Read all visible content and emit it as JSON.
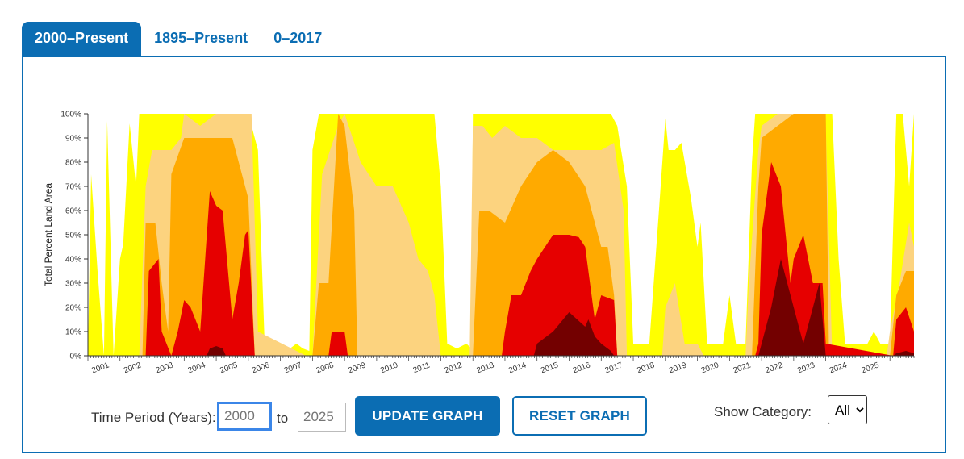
{
  "tabs": [
    {
      "label": "2000–Present"
    },
    {
      "label": "1895–Present"
    },
    {
      "label": "0–2017"
    }
  ],
  "controls": {
    "time_period_label": "Time Period (Years):",
    "start_placeholder": "2000",
    "to_label": "to",
    "end_placeholder": "2025",
    "update_label": "UPDATE GRAPH",
    "reset_label": "RESET GRAPH",
    "category_label": "Show Category:",
    "category_selected": "All"
  },
  "chart_data": {
    "type": "area",
    "stacked_cumulative": true,
    "ylabel": "Total Percent Land Area",
    "xlabel": "",
    "ylim": [
      0,
      100
    ],
    "xlim": [
      2000,
      2025.75
    ],
    "y_ticks": [
      "0%",
      "10%",
      "20%",
      "30%",
      "40%",
      "50%",
      "60%",
      "70%",
      "80%",
      "90%",
      "100%"
    ],
    "x_ticks": [
      "2001",
      "2002",
      "2003",
      "2004",
      "2005",
      "2006",
      "2007",
      "2008",
      "2009",
      "2010",
      "2011",
      "2012",
      "2013",
      "2014",
      "2015",
      "2016",
      "2017",
      "2018",
      "2019",
      "2020",
      "2021",
      "2022",
      "2023",
      "2024",
      "2025"
    ],
    "colors": {
      "D0": "#ffff00",
      "D1": "#fcd37f",
      "D2": "#ffaa00",
      "D3": "#e60000",
      "D4": "#730000"
    },
    "series": [
      {
        "key": "D0",
        "color": "#ffff00",
        "x": [
          2000,
          2000.1,
          2000.3,
          2000.5,
          2000.6,
          2000.8,
          2001.0,
          2001.1,
          2001.3,
          2001.5,
          2001.6,
          2001.8,
          2002.0,
          2002.2,
          2002.5,
          2002.8,
          2003.0,
          2003.5,
          2004.0,
          2004.5,
          2004.9,
          2005.0,
          2005.1,
          2005.3,
          2005.5,
          2005.8,
          2006.0,
          2006.3,
          2006.5,
          2006.7,
          2006.9,
          2007.0,
          2007.2,
          2007.5,
          2008.0,
          2008.5,
          2009.0,
          2009.5,
          2010.0,
          2010.5,
          2010.8,
          2011.0,
          2011.2,
          2011.5,
          2011.8,
          2011.95,
          2012.0,
          2012.5,
          2013.0,
          2013.5,
          2014.0,
          2014.5,
          2015.0,
          2015.5,
          2016.0,
          2016.3,
          2016.5,
          2016.8,
          2017.0,
          2017.1,
          2017.3,
          2017.5,
          2017.8,
          2018.0,
          2018.1,
          2018.3,
          2018.5,
          2018.8,
          2019.0,
          2019.1,
          2019.3,
          2019.5,
          2019.8,
          2020.0,
          2020.2,
          2020.5,
          2020.7,
          2020.8,
          2021.0,
          2021.5,
          2022.0,
          2022.5,
          2023.0,
          2023.2,
          2023.4,
          2023.6,
          2024.0,
          2024.3,
          2024.5,
          2024.7,
          2024.9,
          2025.0,
          2025.2,
          2025.4,
          2025.6,
          2025.75
        ],
        "y": [
          0,
          75,
          35,
          0,
          97,
          0,
          40,
          46,
          96,
          70,
          100,
          100,
          100,
          100,
          100,
          100,
          100,
          100,
          100,
          100,
          100,
          100,
          95,
          85,
          8,
          5,
          5,
          3,
          5,
          3,
          2,
          85,
          100,
          100,
          100,
          100,
          100,
          100,
          100,
          100,
          100,
          70,
          5,
          3,
          5,
          3,
          100,
          100,
          100,
          100,
          100,
          100,
          100,
          100,
          100,
          100,
          95,
          70,
          5,
          5,
          5,
          5,
          60,
          98,
          85,
          85,
          88,
          65,
          45,
          55,
          5,
          5,
          5,
          25,
          5,
          5,
          80,
          100,
          100,
          100,
          100,
          100,
          100,
          100,
          40,
          5,
          5,
          5,
          10,
          5,
          5,
          5,
          100,
          100,
          70,
          100
        ]
      },
      {
        "key": "D1",
        "color": "#fcd37f",
        "x": [
          2000,
          2001.6,
          2001.8,
          2002.0,
          2002.3,
          2002.6,
          2002.9,
          2003.0,
          2003.5,
          2004.0,
          2004.5,
          2004.9,
          2005.1,
          2005.3,
          2006.8,
          2007.0,
          2007.3,
          2007.8,
          2008.0,
          2008.5,
          2009.0,
          2009.5,
          2010.0,
          2010.3,
          2010.6,
          2010.8,
          2011.0,
          2011.9,
          2012.0,
          2012.3,
          2012.6,
          2013.0,
          2013.5,
          2014.0,
          2014.5,
          2015.0,
          2015.5,
          2016.0,
          2016.4,
          2016.7,
          2016.8,
          2017.5,
          2017.9,
          2018.0,
          2018.3,
          2018.6,
          2019.0,
          2019.2,
          2020.5,
          2020.6,
          2020.9,
          2021.0,
          2021.5,
          2022.0,
          2022.5,
          2022.8,
          2023.0,
          2023.2,
          2024.9,
          2025.0,
          2025.3,
          2025.6,
          2025.75
        ],
        "y": [
          0,
          0,
          70,
          85,
          85,
          85,
          90,
          100,
          95,
          100,
          100,
          100,
          100,
          10,
          0,
          0,
          75,
          95,
          100,
          80,
          70,
          70,
          55,
          40,
          35,
          25,
          0,
          0,
          95,
          95,
          90,
          95,
          90,
          90,
          85,
          85,
          85,
          85,
          88,
          60,
          0,
          0,
          0,
          20,
          30,
          5,
          5,
          0,
          0,
          30,
          85,
          95,
          100,
          100,
          100,
          100,
          95,
          0,
          0,
          10,
          30,
          55,
          45
        ]
      },
      {
        "key": "D2",
        "color": "#ffaa00",
        "x": [
          2000,
          2001.7,
          2001.8,
          2002.1,
          2002.3,
          2002.5,
          2002.6,
          2003.0,
          2003.5,
          2004.0,
          2004.5,
          2004.9,
          2005.0,
          2005.2,
          2007.0,
          2007.2,
          2007.5,
          2007.8,
          2008.0,
          2008.3,
          2008.4,
          2012.0,
          2012.2,
          2012.5,
          2013.0,
          2013.5,
          2014.0,
          2014.5,
          2015.0,
          2015.5,
          2016.0,
          2016.2,
          2016.4,
          2016.5,
          2020.7,
          2020.9,
          2021.0,
          2021.5,
          2022.0,
          2022.3,
          2022.6,
          2023.0,
          2023.1,
          2025.0,
          2025.2,
          2025.5,
          2025.75
        ],
        "y": [
          0,
          0,
          55,
          55,
          30,
          10,
          75,
          90,
          90,
          90,
          90,
          70,
          65,
          0,
          0,
          30,
          30,
          100,
          95,
          60,
          0,
          0,
          60,
          60,
          55,
          70,
          80,
          85,
          80,
          70,
          45,
          45,
          25,
          0,
          0,
          70,
          90,
          95,
          100,
          100,
          100,
          100,
          0,
          0,
          25,
          35,
          35
        ]
      },
      {
        "key": "D3",
        "color": "#e60000",
        "x": [
          2000,
          2001.8,
          2001.9,
          2002.2,
          2002.3,
          2002.6,
          2002.8,
          2003.0,
          2003.2,
          2003.5,
          2003.8,
          2004.0,
          2004.2,
          2004.5,
          2004.7,
          2004.9,
          2005.0,
          2005.2,
          2007.5,
          2007.6,
          2008.0,
          2008.1,
          2012.9,
          2013.0,
          2013.2,
          2013.5,
          2013.8,
          2014.0,
          2014.5,
          2015.0,
          2015.3,
          2015.5,
          2015.8,
          2016.0,
          2016.4,
          2016.5,
          2020.8,
          2020.9,
          2021.0,
          2021.3,
          2021.6,
          2021.9,
          2022.0,
          2022.3,
          2022.6,
          2022.9,
          2023.0,
          2025.1,
          2025.2,
          2025.5,
          2025.75
        ],
        "y": [
          0,
          0,
          35,
          40,
          10,
          0,
          10,
          23,
          20,
          10,
          68,
          62,
          60,
          15,
          30,
          50,
          52,
          0,
          0,
          10,
          10,
          0,
          0,
          10,
          25,
          25,
          35,
          40,
          50,
          50,
          49,
          45,
          15,
          25,
          23,
          0,
          0,
          5,
          50,
          80,
          70,
          30,
          40,
          50,
          30,
          30,
          5,
          0,
          15,
          20,
          10
        ]
      },
      {
        "key": "D4",
        "color": "#730000",
        "x": [
          2000,
          2003.7,
          2003.8,
          2004.0,
          2004.2,
          2004.3,
          2013.9,
          2014.0,
          2014.5,
          2015.0,
          2015.5,
          2015.6,
          2015.8,
          2016.0,
          2016.3,
          2016.4,
          2020.9,
          2021.0,
          2021.3,
          2021.6,
          2021.9,
          2022.2,
          2022.3,
          2022.8,
          2023.0,
          2025.1,
          2025.2,
          2025.5,
          2025.75
        ],
        "y": [
          0,
          0,
          3,
          4,
          3,
          0,
          0,
          5,
          10,
          18,
          12,
          15,
          8,
          5,
          2,
          0,
          0,
          5,
          20,
          40,
          25,
          10,
          5,
          30,
          0,
          0,
          1,
          2,
          1
        ]
      }
    ]
  }
}
